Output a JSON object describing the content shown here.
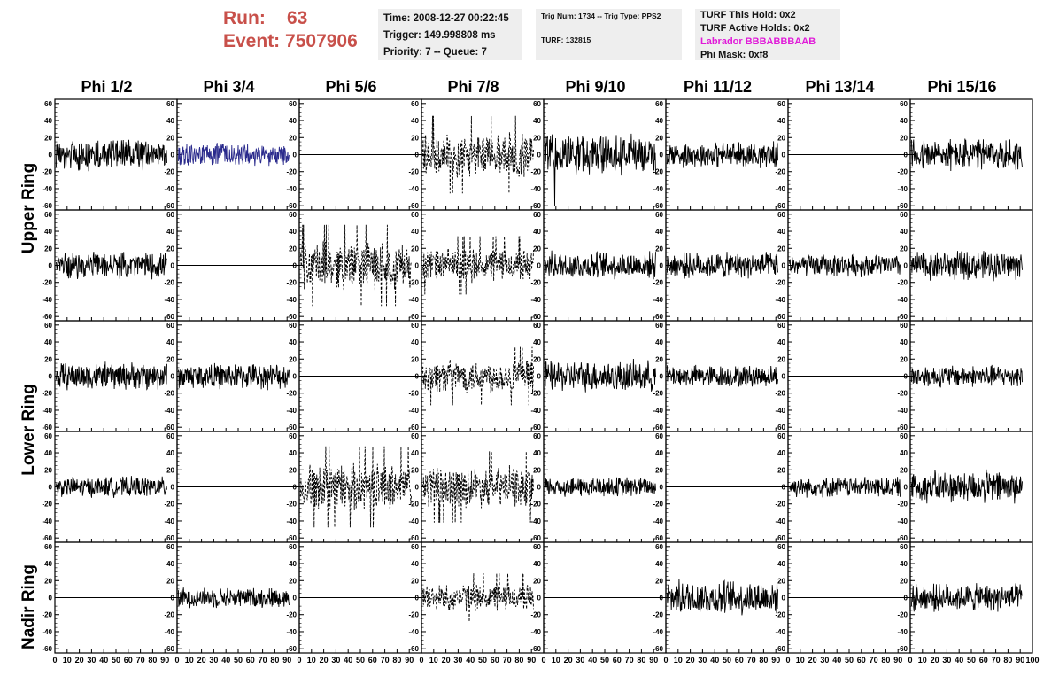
{
  "run": {
    "run_label": "Run:",
    "run_value": "63",
    "event_label": "Event:",
    "event_value": "7507906"
  },
  "info_time": {
    "line1": "Time: 2008-12-27 00:22:45",
    "line2": "Trigger: 149.998808 ms",
    "line3": "Priority: 7 -- Queue: 7"
  },
  "info_trig": {
    "line1": "Trig Num: 1734 -- Trig Type: PPS2",
    "line2": "TURF: 132815"
  },
  "info_turf": {
    "line1": "TURF This Hold: 0x2",
    "line2": "TURF Active Holds: 0x2",
    "line3": "Labrador BBBABBBAAB",
    "line4": "Phi Mask: 0xf8"
  },
  "colors": {
    "title_red": "#c8504a",
    "labrador": "#e01ad8",
    "wave_blue": "#2a2a8c",
    "wave_black": "#000000",
    "info_bg": "#eeeeee"
  },
  "chart_data": {
    "type": "line",
    "columns": [
      "Phi 1/2",
      "Phi 3/4",
      "Phi 5/6",
      "Phi 7/8",
      "Phi 9/10",
      "Phi 11/12",
      "Phi 13/14",
      "Phi 15/16"
    ],
    "rows": [
      "Upper Ring",
      "Lower Ring",
      "Nadir Ring"
    ],
    "xlim": [
      0,
      100
    ],
    "ylim": [
      -65,
      65
    ],
    "yticks": [
      -60,
      -40,
      -20,
      0,
      20,
      40,
      60
    ],
    "xticks": [
      0,
      10,
      20,
      30,
      40,
      50,
      60,
      70,
      80,
      90,
      100
    ],
    "ytick_labels": [
      "-60",
      "-40",
      "-20",
      "0",
      "20",
      "40",
      "60"
    ],
    "xtick_labels": [
      "0",
      "10",
      "20",
      "30",
      "40",
      "50",
      "60",
      "70",
      "80",
      "90",
      "100"
    ],
    "panels": [
      [
        "noise",
        "blue",
        "flat",
        "dashed",
        "spiky",
        "noise",
        "flat",
        "noise"
      ],
      [
        "noise",
        "flat",
        "dashed_wide",
        "dashed",
        "noise",
        "noise",
        "noise",
        "noise"
      ],
      [
        "noise",
        "noise",
        "flat",
        "dashed",
        "noise",
        "noise",
        "flat",
        "noise"
      ],
      [
        "noise",
        "flat",
        "dashed_wide",
        "dashed",
        "noise",
        "flat",
        "noise",
        "noise"
      ],
      [
        "flat",
        "noise",
        "flat",
        "dashed",
        "flat",
        "noise",
        "flat",
        "noise"
      ]
    ],
    "amplitude": [
      [
        17,
        13,
        0,
        24,
        22,
        14,
        0,
        18
      ],
      [
        14,
        0,
        25,
        18,
        15,
        14,
        12,
        16
      ],
      [
        15,
        14,
        0,
        18,
        17,
        12,
        0,
        12
      ],
      [
        11,
        0,
        25,
        22,
        11,
        0,
        11,
        18
      ],
      [
        0,
        11,
        0,
        15,
        0,
        19,
        0,
        15
      ]
    ]
  }
}
